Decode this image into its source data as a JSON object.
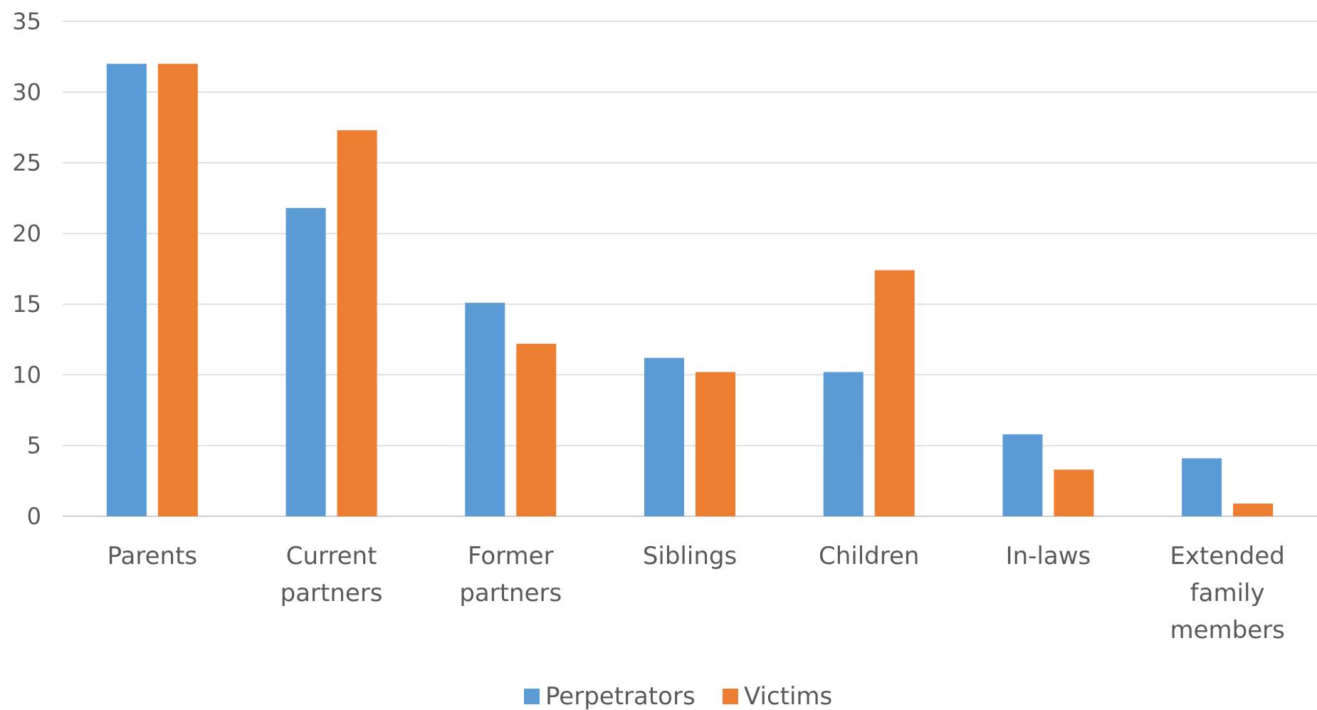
{
  "chart_data": {
    "type": "bar",
    "categories": [
      [
        "Parents"
      ],
      [
        "Current",
        "partners"
      ],
      [
        "Former",
        "partners"
      ],
      [
        "Siblings"
      ],
      [
        "Children"
      ],
      [
        "In-laws"
      ],
      [
        "Extended",
        "family",
        "members"
      ]
    ],
    "series": [
      {
        "name": "Perpetrators",
        "color": "#5B9BD5",
        "values": [
          32,
          21.8,
          15.1,
          11.2,
          10.2,
          5.8,
          4.1
        ]
      },
      {
        "name": "Victims",
        "color": "#ED7D31",
        "values": [
          32,
          27.3,
          12.2,
          10.2,
          17.4,
          3.3,
          0.9
        ]
      }
    ],
    "y_ticks": [
      "0",
      "5",
      "10",
      "15",
      "20",
      "25",
      "30",
      "35"
    ],
    "ylim": [
      0,
      35
    ],
    "grid": true,
    "legend_position": "bottom-center",
    "title": "",
    "xlabel": "",
    "ylabel": ""
  }
}
